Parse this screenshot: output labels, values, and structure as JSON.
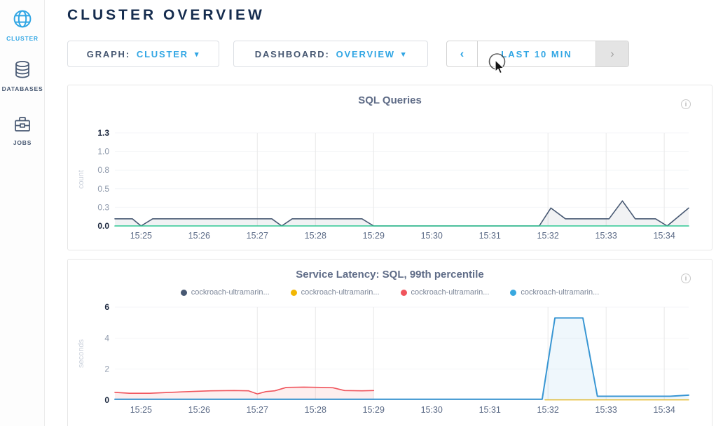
{
  "sidebar": {
    "items": [
      {
        "label": "CLUSTER",
        "icon": "globe-icon",
        "active": true
      },
      {
        "label": "DATABASES",
        "icon": "databases-icon",
        "active": false
      },
      {
        "label": "JOBS",
        "icon": "briefcase-icon",
        "active": false
      }
    ]
  },
  "header": {
    "title": "CLUSTER OVERVIEW"
  },
  "toolbar": {
    "graph": {
      "label": "GRAPH:",
      "value": "CLUSTER",
      "caret": "▾"
    },
    "dashboard": {
      "label": "DASHBOARD:",
      "value": "OVERVIEW",
      "caret": "▾"
    },
    "time_range": {
      "prev": "‹",
      "label": "LAST 10 MIN",
      "next": "›",
      "next_disabled": true
    }
  },
  "colors": {
    "accent_cyan": "#31a6e4",
    "navy_text": "#152c4e",
    "slate": "#475872",
    "series_navy": "#475872",
    "series_green": "#2fc793",
    "series_red": "#f0545c",
    "series_yellow": "#eebc29",
    "series_blue": "#3896d3"
  },
  "chart_data": [
    {
      "type": "area",
      "title": "SQL Queries",
      "ylabel": "count",
      "ylim": [
        0,
        1.3
      ],
      "x_range": [
        24.55,
        34.42
      ],
      "x_unit": "minutes after 15:00",
      "grid": "on",
      "legend": null,
      "info_icon": "i",
      "yticks": [
        {
          "label": "1.3",
          "strong": true
        },
        {
          "label": "1.0",
          "strong": false
        },
        {
          "label": "0.8",
          "strong": false
        },
        {
          "label": "0.5",
          "strong": false
        },
        {
          "label": "0.3",
          "strong": false
        },
        {
          "label": "0.0",
          "strong": true
        }
      ],
      "xticks": [
        {
          "t": 25,
          "label": "15:25"
        },
        {
          "t": 26,
          "label": "15:26"
        },
        {
          "t": 27,
          "label": "15:27"
        },
        {
          "t": 28,
          "label": "15:28"
        },
        {
          "t": 29,
          "label": "15:29"
        },
        {
          "t": 30,
          "label": "15:30"
        },
        {
          "t": 31,
          "label": "15:31"
        },
        {
          "t": 32,
          "label": "15:32"
        },
        {
          "t": 33,
          "label": "15:33"
        },
        {
          "t": 34,
          "label": "15:34"
        }
      ],
      "grid_v": [
        27,
        28,
        29,
        32,
        33,
        34
      ],
      "series": [
        {
          "name": "sql-queries",
          "color": "#475872",
          "width": 1.6,
          "fill": "rgba(71,88,114,0.08)",
          "points": [
            [
              24.55,
              0.1
            ],
            [
              24.85,
              0.1
            ],
            [
              25.0,
              0
            ],
            [
              25.2,
              0.1
            ],
            [
              27.25,
              0.1
            ],
            [
              27.42,
              0
            ],
            [
              27.6,
              0.1
            ],
            [
              28.8,
              0.1
            ],
            [
              29.0,
              0
            ],
            [
              31.85,
              0
            ],
            [
              32.05,
              0.25
            ],
            [
              32.3,
              0.1
            ],
            [
              33.05,
              0.1
            ],
            [
              33.28,
              0.35
            ],
            [
              33.5,
              0.1
            ],
            [
              33.85,
              0.1
            ],
            [
              34.05,
              0
            ],
            [
              34.42,
              0.25
            ]
          ]
        },
        {
          "name": "sql-queries-zero",
          "color": "#2fc793",
          "width": 1.6,
          "fill": null,
          "points": [
            [
              24.55,
              0
            ],
            [
              34.42,
              0
            ]
          ]
        }
      ]
    },
    {
      "type": "area",
      "title": "Service Latency: SQL, 99th percentile",
      "ylabel": "seconds",
      "ylim": [
        0,
        6
      ],
      "x_range": [
        24.55,
        34.42
      ],
      "x_unit": "minutes after 15:00",
      "grid": "on",
      "info_icon": "i",
      "legend": [
        {
          "label": "cockroach-ultramarin...",
          "color": "#475872"
        },
        {
          "label": "cockroach-ultramarin...",
          "color": "#f2b704"
        },
        {
          "label": "cockroach-ultramarin...",
          "color": "#f0545c"
        },
        {
          "label": "cockroach-ultramarin...",
          "color": "#39a8df"
        }
      ],
      "yticks": [
        {
          "label": "6",
          "strong": true
        },
        {
          "label": "4",
          "strong": false
        },
        {
          "label": "2",
          "strong": false
        },
        {
          "label": "0",
          "strong": true
        }
      ],
      "xticks": [
        {
          "t": 25,
          "label": "15:25"
        },
        {
          "t": 26,
          "label": "15:26"
        },
        {
          "t": 27,
          "label": "15:27"
        },
        {
          "t": 28,
          "label": "15:28"
        },
        {
          "t": 29,
          "label": "15:29"
        },
        {
          "t": 30,
          "label": "15:30"
        },
        {
          "t": 31,
          "label": "15:31"
        },
        {
          "t": 32,
          "label": "15:32"
        },
        {
          "t": 33,
          "label": "15:33"
        },
        {
          "t": 34,
          "label": "15:34"
        }
      ],
      "grid_v": [
        27,
        28,
        29,
        32,
        33,
        34
      ],
      "series": [
        {
          "name": "cockroach-ultramarin-navy",
          "color": "#475872",
          "width": 1.4,
          "fill": null,
          "points": [
            [
              24.55,
              0.05
            ],
            [
              31.9,
              0.05
            ]
          ]
        },
        {
          "name": "cockroach-ultramarin-red",
          "color": "#f0545c",
          "width": 1.6,
          "fill": "rgba(240,84,92,0.10)",
          "points": [
            [
              24.55,
              0.5
            ],
            [
              24.8,
              0.44
            ],
            [
              25.15,
              0.44
            ],
            [
              25.5,
              0.5
            ],
            [
              25.9,
              0.56
            ],
            [
              26.2,
              0.6
            ],
            [
              26.6,
              0.62
            ],
            [
              26.85,
              0.6
            ],
            [
              27.0,
              0.4
            ],
            [
              27.15,
              0.55
            ],
            [
              27.3,
              0.6
            ],
            [
              27.5,
              0.82
            ],
            [
              27.8,
              0.84
            ],
            [
              28.1,
              0.82
            ],
            [
              28.3,
              0.8
            ],
            [
              28.5,
              0.62
            ],
            [
              28.8,
              0.6
            ],
            [
              29.0,
              0.62
            ]
          ]
        },
        {
          "name": "cockroach-ultramarin-yellow",
          "color": "#eebc29",
          "width": 1.5,
          "fill": null,
          "points": [
            [
              31.95,
              0.02
            ],
            [
              34.42,
              0.02
            ]
          ]
        },
        {
          "name": "cockroach-ultramarin-blue",
          "color": "#3896d3",
          "width": 2,
          "fill": "rgba(56,150,211,0.08)",
          "points": [
            [
              24.55,
              0.06
            ],
            [
              31.9,
              0.06
            ],
            [
              32.12,
              5.3
            ],
            [
              32.6,
              5.3
            ],
            [
              32.85,
              0.25
            ],
            [
              34.1,
              0.25
            ],
            [
              34.42,
              0.32
            ]
          ]
        }
      ]
    }
  ],
  "cursor": {
    "type": "pointer-with-click-ring"
  }
}
